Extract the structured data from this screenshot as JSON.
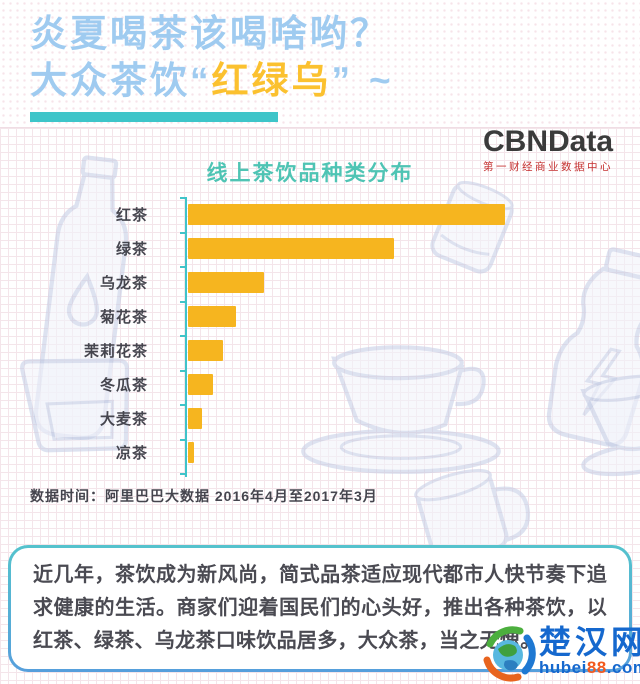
{
  "header": {
    "title_line1": "炎夏喝茶该喝啥哟？",
    "title_line2": {
      "prefix": "大众茶饮",
      "quote_open": "“",
      "highlight": "红绿乌",
      "quote_close": "”",
      "suffix": "~"
    }
  },
  "brand": {
    "name": "CBNData",
    "subtitle": "第一财经商业数据中心"
  },
  "chart_data": {
    "type": "bar",
    "orientation": "horizontal",
    "title": "线上茶饮品种类分布",
    "categories": [
      "红茶",
      "绿茶",
      "乌龙茶",
      "菊花茶",
      "茉莉花茶",
      "冬瓜茶",
      "大麦茶",
      "凉茶"
    ],
    "values": [
      100,
      65,
      24,
      15,
      11,
      8,
      4.5,
      2
    ],
    "value_note": "no numeric axis or data labels shown; values estimated from bar lengths relative to longest bar (红茶 = 100)",
    "xlim": [
      0,
      105
    ],
    "grid": false,
    "legend": false,
    "bar_color": "#f6b51f",
    "axis_color": "#3fc4c9",
    "source_note": "数据时间：阿里巴巴大数据  2016年4月至2017年3月"
  },
  "description": {
    "text": "近几年，茶饮成为新风尚，简式品茶适应现代都市人快节奏下追求健康的生活。商家们迎着国民们的心头好，推出各种茶饮，以红茶、绿茶、乌龙茶口味饮品居多，大众茶，当之无愧。"
  },
  "watermark": {
    "site_name": "楚汉网",
    "url_prefix": "hubei",
    "url_highlight": "88",
    "url_suffix": ".com"
  },
  "colors": {
    "title_blue": "#9fcbf0",
    "highlight_yellow": "#fbc12f",
    "underline_teal": "#3ec5c9",
    "chart_title_teal": "#4fc4b4",
    "bar_yellow": "#f6b51f",
    "axis_teal": "#3fc4c9",
    "text_dark": "#45454e",
    "brand_dark": "#3b3b3b",
    "brand_red": "#c53030",
    "box_border_top": "#55c3cd",
    "box_border_bottom": "#569fdc",
    "logo_blue": "#1568ce",
    "logo_orange": "#f2591d",
    "illustration_line": "#c3cce4"
  },
  "icons": [
    "water-bottle-illustration",
    "glass-illustration",
    "can-illustration",
    "sports-bottle-illustration",
    "teacup-illustration",
    "cup-illustration",
    "mug-illustration",
    "globe-icon"
  ]
}
